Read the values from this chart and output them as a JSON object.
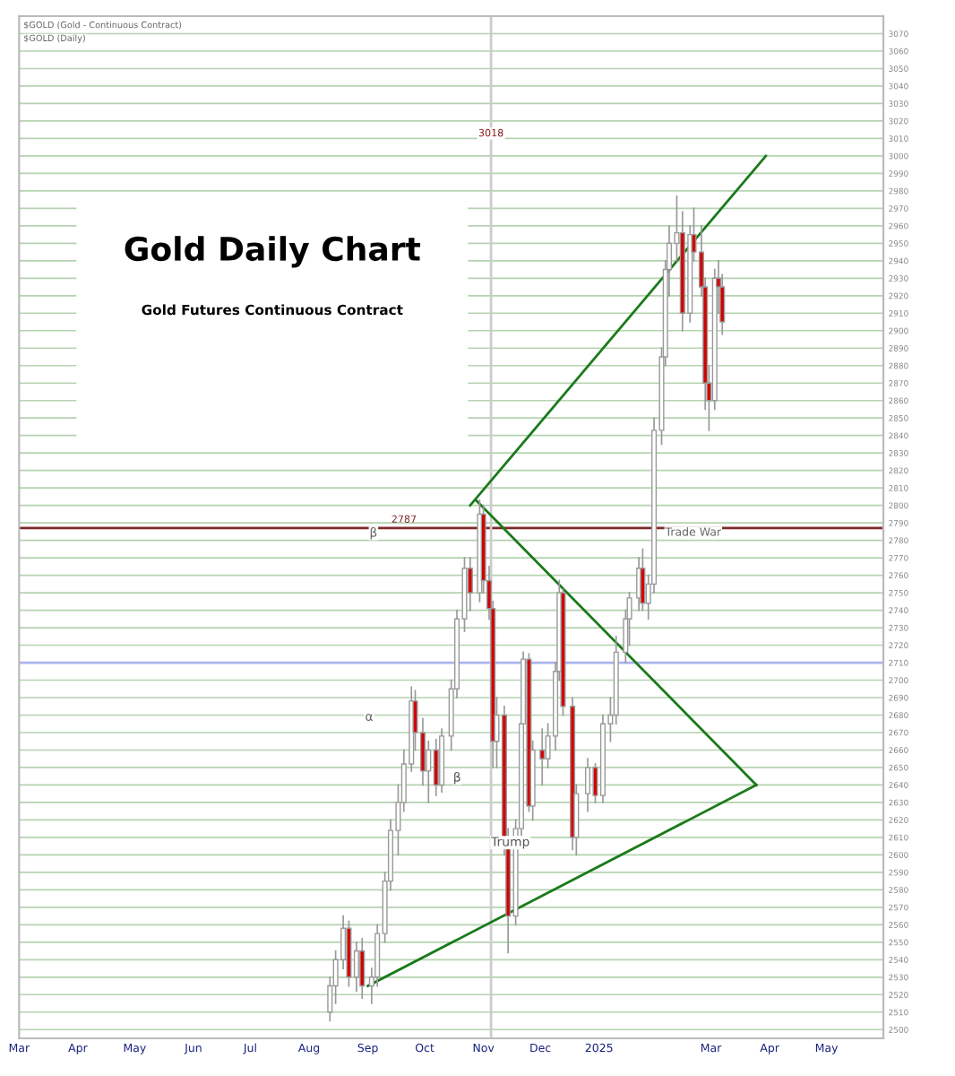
{
  "chart_data": {
    "type": "candlestick",
    "title": "Gold Daily Chart",
    "subtitle": "Gold Futures Continuous Contract",
    "x": [
      "2024-08-12",
      "2024-08-15",
      "2024-08-19",
      "2024-08-22",
      "2024-08-26",
      "2024-08-29",
      "2024-09-03",
      "2024-09-06",
      "2024-09-10",
      "2024-09-13",
      "2024-09-17",
      "2024-09-20",
      "2024-09-24",
      "2024-09-26",
      "2024-09-30",
      "2024-10-03",
      "2024-10-07",
      "2024-10-10",
      "2024-10-15",
      "2024-10-18",
      "2024-10-22",
      "2024-10-25",
      "2024-10-30",
      "2024-11-01",
      "2024-11-04",
      "2024-11-06",
      "2024-11-08",
      "2024-11-12",
      "2024-11-14",
      "2024-11-18",
      "2024-11-21",
      "2024-11-22",
      "2024-11-25",
      "2024-11-27",
      "2024-12-02",
      "2024-12-05",
      "2024-12-09",
      "2024-12-11",
      "2024-12-13",
      "2024-12-18",
      "2024-12-20",
      "2024-12-26",
      "2024-12-30",
      "2025-01-03",
      "2025-01-07",
      "2025-01-10",
      "2025-01-15",
      "2025-01-17",
      "2025-01-22",
      "2025-01-24",
      "2025-01-27",
      "2025-01-30",
      "2025-02-03",
      "2025-02-05",
      "2025-02-07",
      "2025-02-11",
      "2025-02-14",
      "2025-02-18",
      "2025-02-20",
      "2025-02-24",
      "2025-02-26",
      "2025-02-28",
      "2025-03-03",
      "2025-03-05",
      "2025-03-07"
    ],
    "ohlc": [
      [
        2510,
        2530,
        2505,
        2525
      ],
      [
        2525,
        2545,
        2515,
        2540
      ],
      [
        2540,
        2565,
        2535,
        2558
      ],
      [
        2558,
        2562,
        2525,
        2530
      ],
      [
        2530,
        2550,
        2522,
        2545
      ],
      [
        2545,
        2552,
        2518,
        2525
      ],
      [
        2525,
        2535,
        2515,
        2530
      ],
      [
        2530,
        2560,
        2525,
        2555
      ],
      [
        2555,
        2590,
        2550,
        2585
      ],
      [
        2585,
        2620,
        2580,
        2614
      ],
      [
        2614,
        2640,
        2600,
        2630
      ],
      [
        2630,
        2660,
        2625,
        2652
      ],
      [
        2652,
        2696,
        2648,
        2688
      ],
      [
        2688,
        2694,
        2660,
        2670
      ],
      [
        2670,
        2678,
        2640,
        2648
      ],
      [
        2648,
        2665,
        2630,
        2660
      ],
      [
        2660,
        2666,
        2634,
        2640
      ],
      [
        2640,
        2672,
        2636,
        2668
      ],
      [
        2668,
        2700,
        2660,
        2695
      ],
      [
        2695,
        2740,
        2690,
        2735
      ],
      [
        2735,
        2770,
        2728,
        2764
      ],
      [
        2764,
        2770,
        2740,
        2750
      ],
      [
        2750,
        2803,
        2745,
        2795
      ],
      [
        2795,
        2800,
        2750,
        2757
      ],
      [
        2757,
        2765,
        2735,
        2741
      ],
      [
        2741,
        2745,
        2650,
        2665
      ],
      [
        2665,
        2690,
        2650,
        2680
      ],
      [
        2680,
        2685,
        2600,
        2610
      ],
      [
        2610,
        2615,
        2544,
        2565
      ],
      [
        2565,
        2620,
        2560,
        2615
      ],
      [
        2615,
        2680,
        2610,
        2675
      ],
      [
        2675,
        2716,
        2670,
        2712
      ],
      [
        2712,
        2715,
        2625,
        2628
      ],
      [
        2628,
        2665,
        2620,
        2660
      ],
      [
        2660,
        2672,
        2640,
        2655
      ],
      [
        2655,
        2675,
        2650,
        2668
      ],
      [
        2668,
        2710,
        2660,
        2705
      ],
      [
        2705,
        2757,
        2700,
        2750
      ],
      [
        2750,
        2752,
        2680,
        2685
      ],
      [
        2685,
        2690,
        2603,
        2610
      ],
      [
        2610,
        2640,
        2600,
        2635
      ],
      [
        2635,
        2655,
        2625,
        2650
      ],
      [
        2650,
        2652,
        2630,
        2634
      ],
      [
        2634,
        2680,
        2630,
        2675
      ],
      [
        2675,
        2690,
        2665,
        2680
      ],
      [
        2680,
        2725,
        2675,
        2716
      ],
      [
        2716,
        2740,
        2710,
        2735
      ],
      [
        2735,
        2750,
        2720,
        2747
      ],
      [
        2747,
        2770,
        2740,
        2764
      ],
      [
        2764,
        2775,
        2740,
        2744
      ],
      [
        2744,
        2760,
        2735,
        2755
      ],
      [
        2755,
        2850,
        2750,
        2843
      ],
      [
        2843,
        2890,
        2835,
        2885
      ],
      [
        2885,
        2940,
        2880,
        2935
      ],
      [
        2935,
        2960,
        2920,
        2950
      ],
      [
        2950,
        2977,
        2940,
        2956
      ],
      [
        2956,
        2968,
        2900,
        2910
      ],
      [
        2910,
        2960,
        2905,
        2955
      ],
      [
        2955,
        2970,
        2940,
        2945
      ],
      [
        2945,
        2960,
        2920,
        2925
      ],
      [
        2925,
        2930,
        2855,
        2870
      ],
      [
        2870,
        2880,
        2843,
        2860
      ],
      [
        2860,
        2935,
        2855,
        2930
      ],
      [
        2930,
        2940,
        2910,
        2925
      ],
      [
        2925,
        2932,
        2898,
        2905
      ]
    ],
    "colors": [
      "#ffffff",
      "#ffffff",
      "#ffffff",
      "#d40000",
      "#ffffff",
      "#d40000",
      "#ffffff",
      "#ffffff",
      "#ffffff",
      "#ffffff",
      "#ffffff",
      "#ffffff",
      "#ffffff",
      "#d40000",
      "#d40000",
      "#ffffff",
      "#d40000",
      "#ffffff",
      "#ffffff",
      "#ffffff",
      "#ffffff",
      "#d40000",
      "#ffffff",
      "#d40000",
      "#d40000",
      "#d40000",
      "#ffffff",
      "#d40000",
      "#d40000",
      "#ffffff",
      "#ffffff",
      "#ffffff",
      "#d40000",
      "#ffffff",
      "#d40000",
      "#ffffff",
      "#ffffff",
      "#ffffff",
      "#d40000",
      "#d40000",
      "#ffffff",
      "#ffffff",
      "#d40000",
      "#ffffff",
      "#ffffff",
      "#ffffff",
      "#ffffff",
      "#ffffff",
      "#ffffff",
      "#d40000",
      "#ffffff",
      "#ffffff",
      "#ffffff",
      "#ffffff",
      "#ffffff",
      "#ffffff",
      "#d40000",
      "#ffffff",
      "#d40000",
      "#d40000",
      "#d40000",
      "#d40000",
      "#ffffff",
      "#d40000",
      "#d40000"
    ],
    "series": [
      {
        "type": "line",
        "color": "#1a7a1a",
        "x": [
          "2024-09-01",
          "2025-03-25"
        ],
        "values": [
          2525,
          2640
        ]
      },
      {
        "type": "line",
        "color": "#1a7a1a",
        "x": [
          "2024-10-25",
          "2025-03-30"
        ],
        "values": [
          2800,
          3000
        ]
      },
      {
        "type": "line",
        "color": "#1a7a1a",
        "x": [
          "2024-10-28",
          "2025-03-25"
        ],
        "values": [
          2803,
          2640
        ]
      }
    ],
    "ref_lines": [
      {
        "axis": "y",
        "value": 2787,
        "label": "2787",
        "color": "#7f2a2a"
      },
      {
        "axis": "y",
        "value": 2710,
        "label": null,
        "color": "#aab4ee"
      },
      {
        "axis": "x",
        "value": "2024-11-05",
        "label": "3018",
        "color": "#cccccc"
      }
    ],
    "annotations": [
      "$GOLD (Gold - Continuous Contract)",
      "$GOLD (Daily)",
      {
        "text": "Trump",
        "x": "2024-11-01",
        "y": 2607
      },
      "Trade War",
      "α",
      "β",
      {
        "text": "β",
        "x": "2024-10-12",
        "y": 2644
      }
    ],
    "xlim": [
      "2024-03-01",
      "2025-05-31"
    ],
    "xticks": [
      {
        "value": "2024-03-01",
        "label": "Mar"
      },
      {
        "value": "2024-04-01",
        "label": "Apr"
      },
      {
        "value": "2024-05-01",
        "label": "May"
      },
      {
        "value": "2024-06-01",
        "label": "Jun"
      },
      {
        "value": "2024-07-01",
        "label": "Jul"
      },
      {
        "value": "2024-08-01",
        "label": "Aug"
      },
      {
        "value": "2024-09-01",
        "label": "Sep"
      },
      {
        "value": "2024-10-01",
        "label": "Oct"
      },
      {
        "value": "2024-11-01",
        "label": "Nov"
      },
      {
        "value": "2024-12-01",
        "label": "Dec"
      },
      {
        "value": "2025-01-01",
        "label": "2025"
      },
      {
        "value": "2025-03-01",
        "label": "Mar"
      },
      {
        "value": "2025-04-01",
        "label": "Apr"
      },
      {
        "value": "2025-05-01",
        "label": "May"
      }
    ],
    "ylim": [
      2495,
      3080
    ],
    "yticks": [
      2500,
      2510,
      2520,
      2530,
      2540,
      2550,
      2560,
      2570,
      2580,
      2590,
      2600,
      2610,
      2620,
      2630,
      2640,
      2650,
      2660,
      2670,
      2680,
      2690,
      2700,
      2710,
      2720,
      2730,
      2740,
      2750,
      2760,
      2770,
      2780,
      2790,
      2800,
      2810,
      2820,
      2830,
      2840,
      2850,
      2860,
      2870,
      2880,
      2890,
      2900,
      2910,
      2920,
      2930,
      2940,
      2950,
      2960,
      2970,
      2980,
      2990,
      3000,
      3010,
      3020,
      3030,
      3040,
      3050,
      3060,
      3070
    ],
    "grid": "y"
  }
}
